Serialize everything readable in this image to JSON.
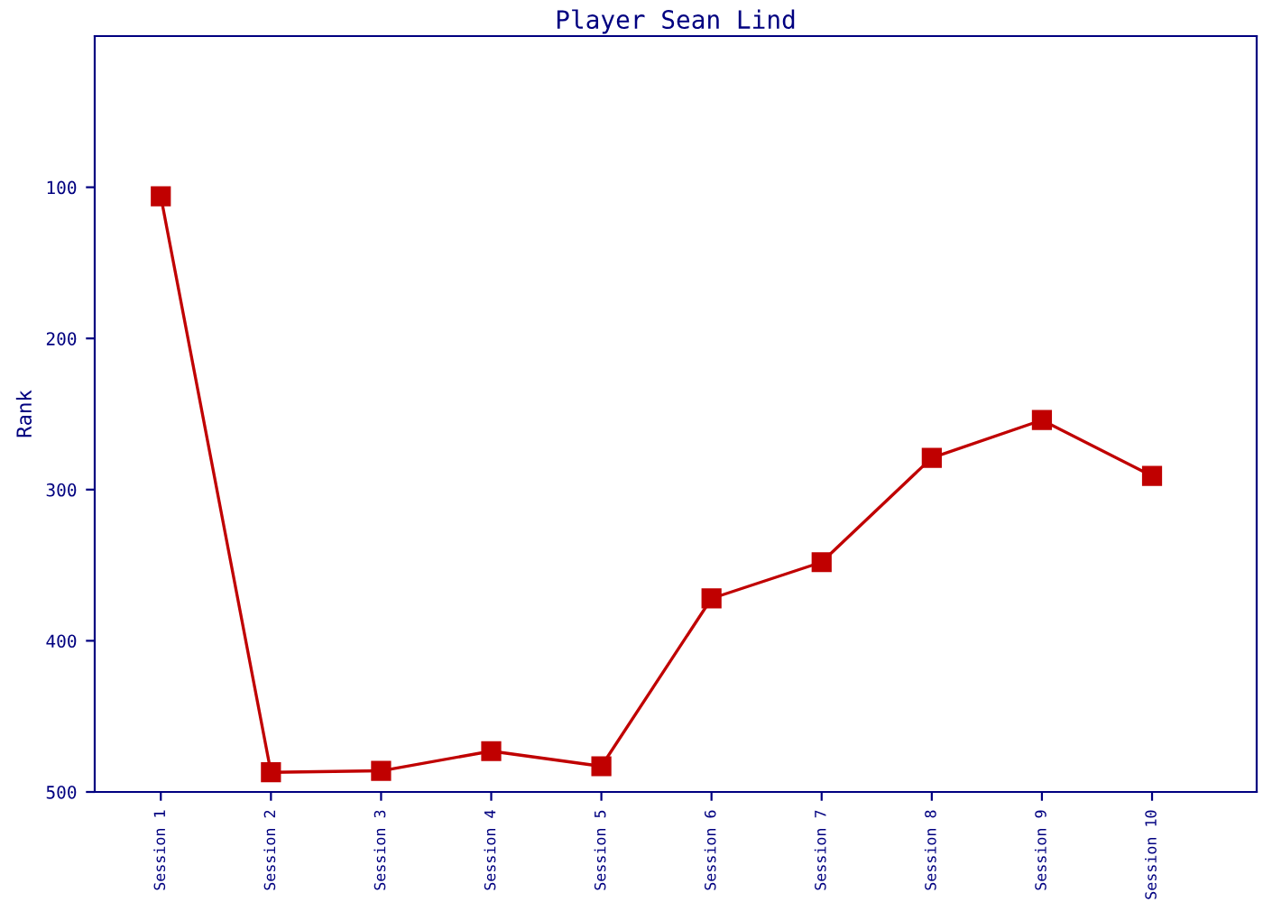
{
  "chart_data": {
    "type": "line",
    "title": "Player Sean Lind",
    "ylabel": "Rank",
    "categories": [
      "Session 1",
      "Session 2",
      "Session 3",
      "Session 4",
      "Session 5",
      "Session 6",
      "Session 7",
      "Session 8",
      "Session 9",
      "Session 10"
    ],
    "series": [
      {
        "color": "#c00000",
        "values": [
          106,
          487,
          486,
          473,
          483,
          372,
          348,
          279,
          254,
          291
        ]
      }
    ],
    "ylim": [
      500,
      0
    ],
    "yticks": [
      100,
      200,
      300,
      400,
      500
    ],
    "grid": false,
    "legend": false,
    "marker": "square",
    "line_style": "solid"
  }
}
